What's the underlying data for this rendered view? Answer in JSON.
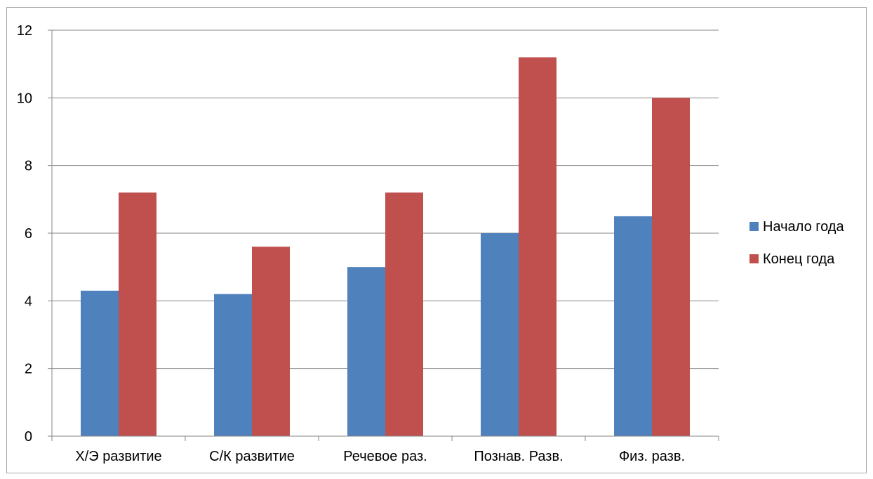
{
  "chart_data": {
    "type": "bar",
    "title": "",
    "xlabel": "",
    "ylabel": "",
    "categories": [
      "Х/Э развитие",
      "С/К развитие",
      "Речевое раз.",
      "Познав. Разв.",
      "Физ. разв."
    ],
    "series": [
      {
        "name": "Начало года",
        "color": "#4F81BD",
        "values": [
          4.3,
          4.2,
          5.0,
          6.0,
          6.5
        ]
      },
      {
        "name": "Конец года",
        "color": "#C0504D",
        "values": [
          7.2,
          5.6,
          7.2,
          11.2,
          10.0
        ]
      }
    ],
    "ylim": [
      0,
      12
    ],
    "yticks": [
      "0",
      "2",
      "4",
      "6",
      "8",
      "10",
      "12"
    ],
    "grid": true,
    "legend_position": "right"
  }
}
